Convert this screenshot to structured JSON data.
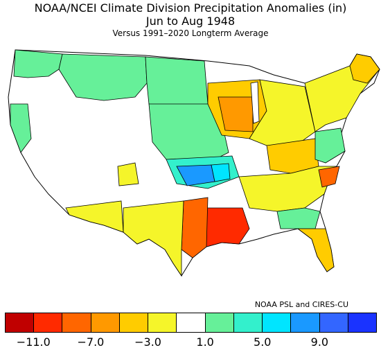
{
  "title": {
    "line1": "NOAA/NCEI Climate Division Precipitation Anomalies (in)",
    "line2": "Jun to Aug 1948",
    "line3": "Versus 1991–2020 Longterm Average"
  },
  "credit": "NOAA PSL and CIRES-CU",
  "legend": {
    "colors": [
      "#c00000",
      "#ff2a00",
      "#ff6600",
      "#ff9900",
      "#ffcc00",
      "#f5f52a",
      "#ffffff",
      "#66f099",
      "#33f0cc",
      "#00e5ff",
      "#1a99ff",
      "#3366ff",
      "#1a33ff"
    ],
    "tick_labels": [
      "−11.0",
      "−7.0",
      "−3.0",
      "1.0",
      "5.0",
      "9.0"
    ],
    "tick_values": [
      -11,
      -7,
      -3,
      1,
      5,
      9
    ],
    "range": [
      -13,
      13
    ]
  },
  "map": {
    "region": "Contiguous United States",
    "units": "in",
    "colors": {
      "outline": "#000000",
      "wet_light": "#66f099",
      "wet_mid": "#33f0cc",
      "wet_cyan": "#00e5ff",
      "wet_blue": "#1a99ff",
      "dry_yellow": "#f5f52a",
      "dry_gold": "#ffcc00",
      "dry_orange": "#ff9900",
      "dry_deep": "#ff6600",
      "dry_red": "#ff2a00",
      "neutral": "#ffffff"
    }
  }
}
